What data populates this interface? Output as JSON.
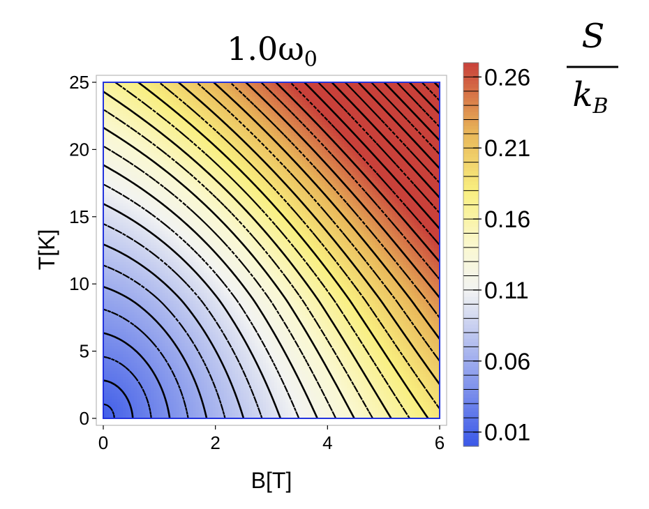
{
  "chart_data": {
    "type": "contour",
    "title": "1.0ω",
    "title_subscript": "0",
    "xlabel": "B[T]",
    "ylabel": "T[K]",
    "xlim": [
      0,
      6
    ],
    "ylim": [
      0,
      25
    ],
    "x_ticks": [
      "0",
      "2",
      "4",
      "6"
    ],
    "x_tick_values": [
      0,
      2,
      4,
      6
    ],
    "y_ticks": [
      "0",
      "5",
      "10",
      "15",
      "20",
      "25"
    ],
    "y_tick_values": [
      0,
      5,
      10,
      15,
      20,
      25
    ],
    "colorbar": {
      "range": [
        0,
        0.27
      ],
      "ticks": [
        "0.01",
        "0.06",
        "0.11",
        "0.16",
        "0.21",
        "0.26"
      ],
      "tick_values": [
        0.01,
        0.06,
        0.11,
        0.16,
        0.21,
        0.26
      ],
      "color_stops": [
        {
          "value": 0.0,
          "color": "#3a58e8"
        },
        {
          "value": 0.11,
          "color": "#f2f3f2"
        },
        {
          "value": 0.14,
          "color": "#faf8d2"
        },
        {
          "value": 0.18,
          "color": "#f9ef80"
        },
        {
          "value": 0.22,
          "color": "#e9b85a"
        },
        {
          "value": 0.27,
          "color": "#c9413a"
        }
      ]
    },
    "contour_step": 0.01,
    "contour_style": "alternating solid and dashed black lines",
    "quantity_label": {
      "numerator": "S",
      "denominator": "k",
      "denominator_subscript": "B"
    }
  }
}
